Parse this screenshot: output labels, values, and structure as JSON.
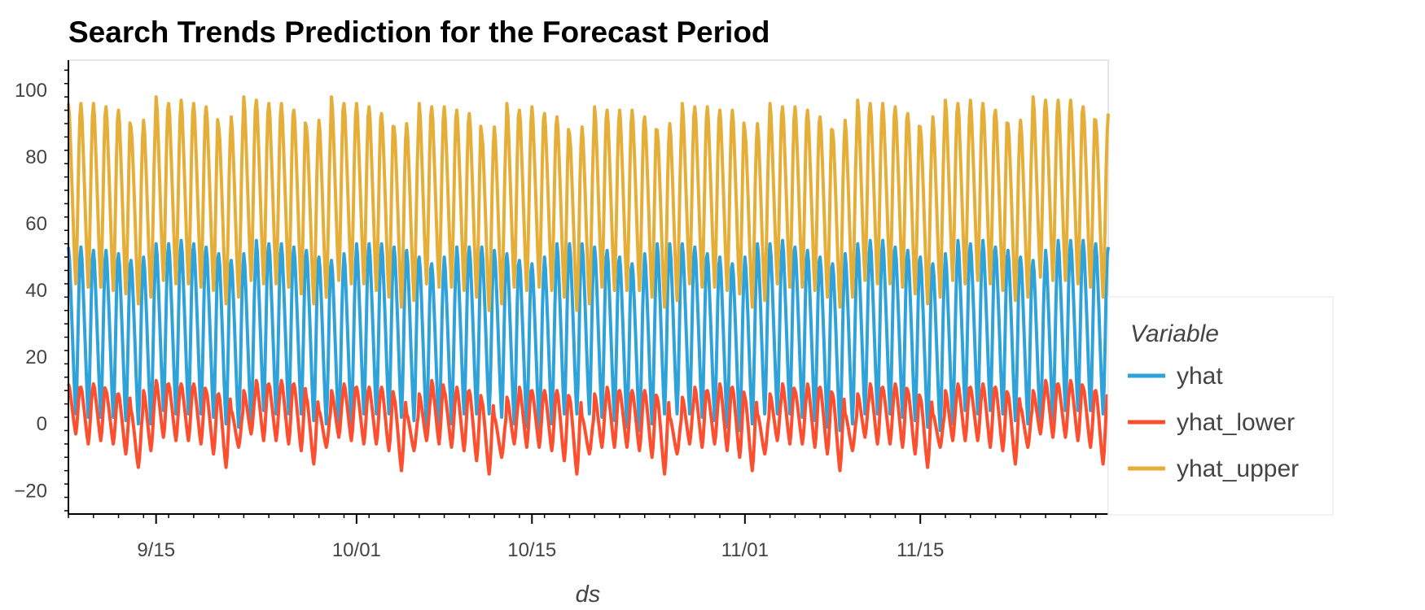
{
  "chart_data": {
    "type": "line",
    "title": "Search Trends Prediction for the Forecast Period",
    "xlabel": "ds",
    "ylabel": "",
    "x_range": [
      "2020-09-08T00:00",
      "2020-11-30T00:00"
    ],
    "ylim": [
      -27,
      109
    ],
    "x_ticks": [
      {
        "label": "9/15",
        "date": "2020-09-15T00:00"
      },
      {
        "label": "10/01",
        "date": "2020-10-01T00:00"
      },
      {
        "label": "10/15",
        "date": "2020-10-15T00:00"
      },
      {
        "label": "11/01",
        "date": "2020-11-01T00:00"
      },
      {
        "label": "11/15",
        "date": "2020-11-15T00:00"
      }
    ],
    "y_ticks": [
      -20,
      0,
      20,
      40,
      60,
      80,
      100
    ],
    "grid": false,
    "legend": {
      "title": "Variable",
      "placement": "right"
    },
    "series_shape": "hourly values with a daily cycle; each day peaks near hour 0 and bottoms out around hour 14",
    "daily_profile": {
      "hours": [
        0,
        2,
        4,
        6,
        8,
        10,
        12,
        14,
        16,
        18,
        20,
        22
      ],
      "relative_shape": [
        1.0,
        0.93,
        0.78,
        0.62,
        0.45,
        0.28,
        0.12,
        0.0,
        0.15,
        0.42,
        0.72,
        0.93
      ]
    },
    "series": [
      {
        "name": "yhat",
        "color": "#30a2da",
        "daily_peak": [
          53,
          53,
          52,
          52,
          51,
          49,
          50,
          54,
          54,
          55,
          54,
          53,
          51,
          49,
          51,
          55,
          54,
          54,
          53,
          52,
          50,
          49,
          51,
          54,
          54,
          54,
          53,
          52,
          50,
          48,
          50,
          53,
          53,
          53,
          52,
          51,
          49,
          48,
          50,
          54,
          54,
          54,
          53,
          52,
          50,
          48,
          51,
          54,
          54,
          54,
          53,
          51,
          50,
          48,
          50,
          54,
          54,
          55,
          53,
          52,
          50,
          48,
          51,
          54,
          55,
          55,
          53,
          52,
          50,
          48,
          51,
          55,
          54,
          55,
          53,
          52,
          50,
          49,
          52,
          55,
          55,
          55,
          54,
          53
        ],
        "daily_trough": [
          3,
          2,
          2,
          2,
          1,
          0,
          0,
          4,
          3,
          3,
          3,
          2,
          0,
          -1,
          0,
          4,
          3,
          3,
          3,
          1,
          0,
          -2,
          0,
          3,
          3,
          3,
          2,
          1,
          -1,
          -2,
          0,
          3,
          3,
          3,
          2,
          0,
          -1,
          -2,
          0,
          3,
          3,
          3,
          2,
          1,
          -1,
          -2,
          0,
          3,
          3,
          3,
          2,
          1,
          -1,
          -2,
          0,
          3,
          3,
          3,
          2,
          1,
          -1,
          -2,
          0,
          3,
          3,
          3,
          2,
          1,
          -1,
          -2,
          0,
          4,
          3,
          4,
          3,
          1,
          0,
          -1,
          1,
          4,
          4,
          4,
          3,
          2
        ]
      },
      {
        "name": "yhat_lower",
        "color": "#fc4f30",
        "daily_peak": [
          12,
          11,
          12,
          10,
          9,
          4,
          10,
          13,
          12,
          12,
          12,
          10,
          9,
          4,
          10,
          13,
          12,
          13,
          12,
          8,
          4,
          10,
          12,
          11,
          11,
          11,
          8,
          3,
          9,
          13,
          10,
          11,
          10,
          7,
          2,
          8,
          11,
          10,
          10,
          10,
          8,
          2,
          9,
          11,
          10,
          10,
          10,
          8,
          2,
          8,
          11,
          10,
          12,
          11,
          8,
          3,
          9,
          12,
          10,
          12,
          11,
          9,
          3,
          9,
          12,
          11,
          12,
          10,
          8,
          3,
          10,
          12,
          11,
          12,
          11,
          9,
          5,
          10,
          13,
          12,
          13,
          11,
          10,
          6
        ],
        "daily_trough": [
          -3,
          -6,
          -5,
          -6,
          -9,
          -13,
          -8,
          -4,
          -5,
          -5,
          -6,
          -9,
          -13,
          -7,
          -3,
          -5,
          -5,
          -6,
          -8,
          -12,
          -7,
          -4,
          -5,
          -6,
          -6,
          -8,
          -14,
          -8,
          -5,
          -6,
          -7,
          -8,
          -11,
          -15,
          -10,
          -6,
          -7,
          -7,
          -8,
          -11,
          -15,
          -9,
          -7,
          -7,
          -7,
          -8,
          -10,
          -15,
          -9,
          -6,
          -7,
          -6,
          -8,
          -10,
          -14,
          -9,
          -5,
          -6,
          -6,
          -7,
          -9,
          -14,
          -8,
          -4,
          -6,
          -6,
          -7,
          -9,
          -13,
          -7,
          -5,
          -5,
          -5,
          -7,
          -8,
          -12,
          -7,
          -3,
          -4,
          -4,
          -5,
          -7,
          -12,
          -7
        ]
      },
      {
        "name": "yhat_upper",
        "color": "#e5ae38",
        "daily_peak": [
          96,
          96,
          96,
          95,
          94,
          89,
          91,
          98,
          96,
          97,
          96,
          95,
          89,
          92,
          98,
          97,
          96,
          96,
          94,
          89,
          91,
          98,
          96,
          96,
          95,
          93,
          89,
          90,
          96,
          95,
          95,
          94,
          93,
          87,
          89,
          96,
          94,
          95,
          93,
          92,
          87,
          89,
          95,
          94,
          94,
          94,
          92,
          88,
          90,
          96,
          95,
          95,
          94,
          94,
          88,
          90,
          96,
          95,
          95,
          94,
          92,
          88,
          91,
          97,
          96,
          96,
          95,
          93,
          89,
          92,
          97,
          96,
          97,
          96,
          94,
          90,
          91,
          98,
          97,
          97,
          97,
          95,
          91,
          93
        ],
        "daily_trough": [
          42,
          41,
          41,
          40,
          39,
          36,
          38,
          43,
          42,
          42,
          41,
          40,
          36,
          38,
          43,
          42,
          42,
          41,
          39,
          36,
          38,
          43,
          42,
          42,
          40,
          38,
          35,
          37,
          42,
          41,
          41,
          40,
          38,
          34,
          36,
          41,
          40,
          41,
          40,
          38,
          34,
          36,
          41,
          40,
          40,
          40,
          38,
          35,
          37,
          42,
          41,
          41,
          40,
          39,
          35,
          37,
          42,
          41,
          41,
          40,
          38,
          35,
          38,
          43,
          42,
          42,
          41,
          39,
          36,
          38,
          43,
          42,
          43,
          42,
          40,
          37,
          38,
          44,
          43,
          43,
          42,
          41,
          38,
          39
        ]
      }
    ]
  }
}
